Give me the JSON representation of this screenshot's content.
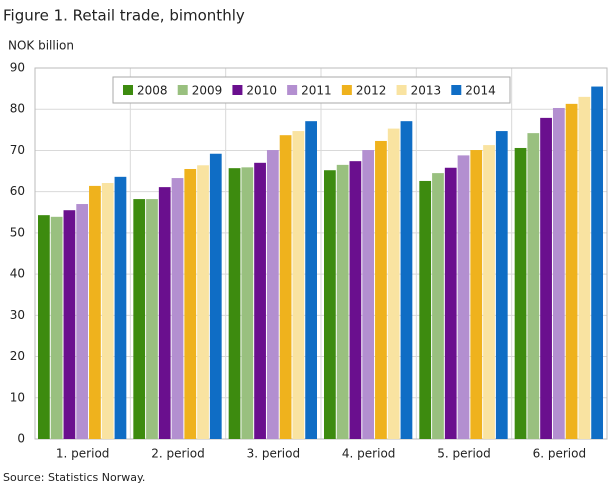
{
  "chart_data": {
    "type": "bar",
    "title": "Figure 1. Retail trade, bimonthly",
    "y_label": "NOK billion",
    "source": "Source: Statistics Norway.",
    "categories": [
      "1. period",
      "2. period",
      "3. period",
      "4. period",
      "5. period",
      "6. period"
    ],
    "series": [
      {
        "name": "2008",
        "color": "#3d8b0f",
        "values": [
          54.3,
          58.2,
          65.7,
          65.2,
          62.6,
          70.6
        ]
      },
      {
        "name": "2009",
        "color": "#99c07f",
        "values": [
          53.9,
          58.2,
          65.9,
          66.5,
          64.5,
          74.2
        ]
      },
      {
        "name": "2010",
        "color": "#6a0f8e",
        "values": [
          55.5,
          61.1,
          67.0,
          67.4,
          65.8,
          77.9
        ]
      },
      {
        "name": "2011",
        "color": "#b38fd0",
        "values": [
          57.0,
          63.3,
          70.1,
          70.1,
          68.8,
          80.3
        ]
      },
      {
        "name": "2012",
        "color": "#efb21d",
        "values": [
          61.4,
          65.5,
          73.7,
          72.3,
          70.1,
          81.3
        ]
      },
      {
        "name": "2013",
        "color": "#f9e3a1",
        "values": [
          62.1,
          66.4,
          74.7,
          75.3,
          71.3,
          83.0
        ]
      },
      {
        "name": "2014",
        "color": "#0f6dc5",
        "values": [
          63.6,
          69.2,
          77.1,
          77.1,
          74.7,
          85.5
        ]
      }
    ],
    "ylim": [
      0,
      90
    ],
    "yticks": [
      0,
      10,
      20,
      30,
      40,
      50,
      60,
      70,
      80,
      90
    ],
    "grid": true
  }
}
